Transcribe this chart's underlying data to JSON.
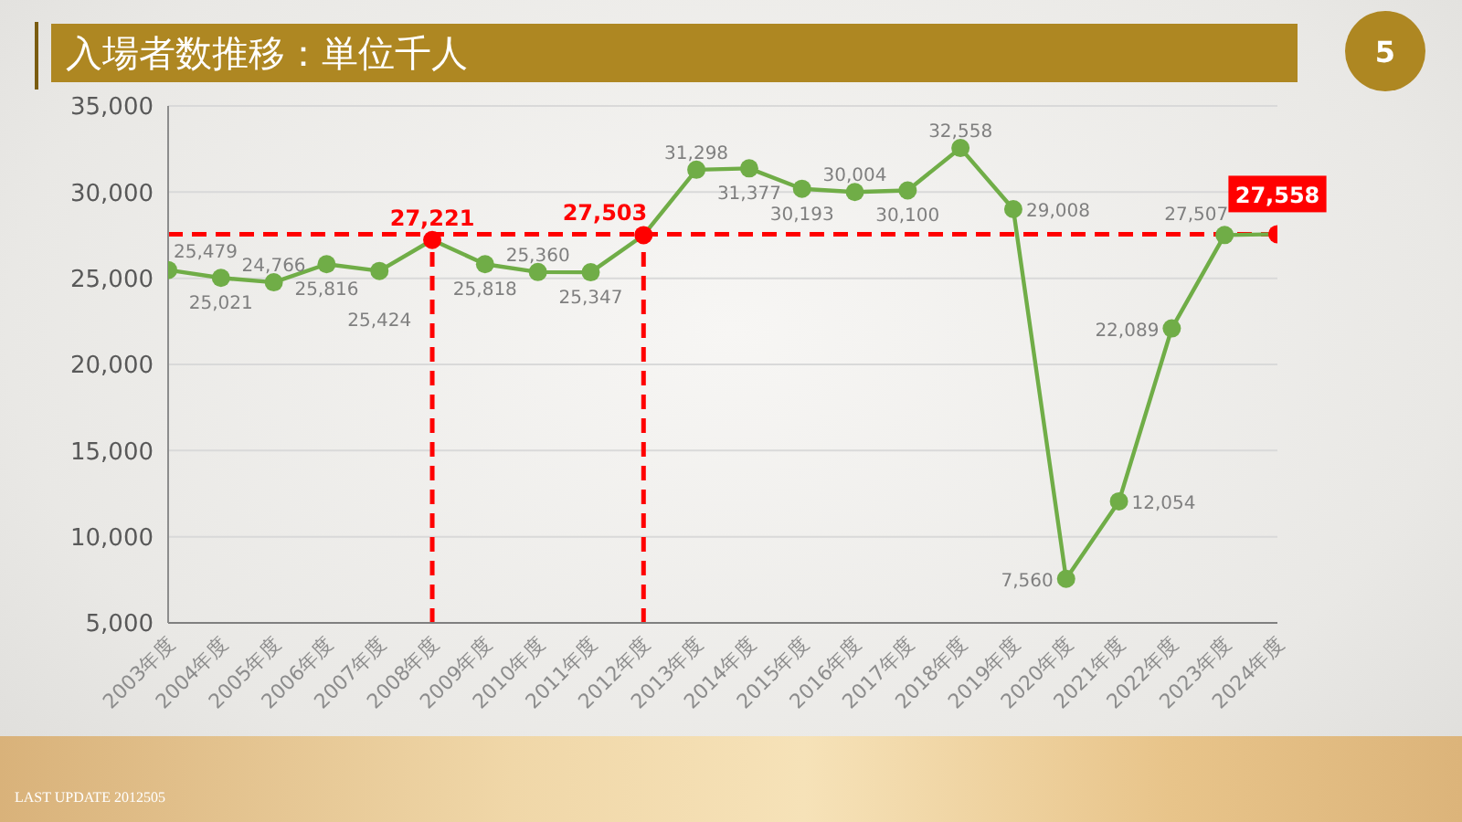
{
  "chart_data": {
    "type": "line",
    "title": "入場者数推移：単位千人",
    "categories": [
      "2003年度",
      "2004年度",
      "2005年度",
      "2006年度",
      "2007年度",
      "2008年度",
      "2009年度",
      "2010年度",
      "2011年度",
      "2012年度",
      "2013年度",
      "2014年度",
      "2015年度",
      "2016年度",
      "2017年度",
      "2018年度",
      "2019年度",
      "2020年度",
      "2021年度",
      "2022年度",
      "2023年度",
      "2024年度"
    ],
    "values": [
      25479,
      25021,
      24766,
      25816,
      25424,
      27221,
      25818,
      25360,
      25347,
      27503,
      31298,
      31377,
      30193,
      30004,
      30100,
      32558,
      29008,
      7560,
      12054,
      22089,
      27507,
      27558
    ],
    "value_labels": [
      "25,479",
      "25,021",
      "24,766",
      "25,816",
      "25,424",
      "27,221",
      "25,818",
      "25,360",
      "25,347",
      "27,503",
      "31,298",
      "31,377",
      "30,193",
      "30,004",
      "30,100",
      "32,558",
      "29,008",
      "7,560",
      "12,054",
      "22,089",
      "27,507",
      "27,558"
    ],
    "color": "#70ad47",
    "colors": [
      "#70ad47",
      "#70ad47",
      "#70ad47",
      "#70ad47",
      "#70ad47",
      "#ff0000",
      "#70ad47",
      "#70ad47",
      "#70ad47",
      "#ff0000",
      "#70ad47",
      "#70ad47",
      "#70ad47",
      "#70ad47",
      "#70ad47",
      "#70ad47",
      "#70ad47",
      "#70ad47",
      "#70ad47",
      "#70ad47",
      "#70ad47",
      "#ff0000"
    ],
    "ylim": [
      5000,
      35000
    ],
    "yticks": [
      {
        "value": 5000,
        "label": "5,000"
      },
      {
        "value": 10000,
        "label": "10,000"
      },
      {
        "value": 15000,
        "label": "15,000"
      },
      {
        "value": 20000,
        "label": "20,000"
      },
      {
        "value": 25000,
        "label": "25,000"
      },
      {
        "value": 30000,
        "label": "30,000"
      },
      {
        "value": 35000,
        "label": "35,000"
      }
    ],
    "grid": "y",
    "marker": "circle",
    "line_style": "solid",
    "ref_lines": [
      {
        "axis": "y",
        "value": 27558,
        "color": "#ff0000",
        "line_style": "dashed"
      },
      {
        "axis": "x",
        "value": "2008年度",
        "color": "#ff0000",
        "line_style": "dashed"
      },
      {
        "axis": "x",
        "value": "2012年度",
        "color": "#ff0000",
        "line_style": "dashed"
      }
    ],
    "annotations": [
      "5",
      "LAST UPDATE 2012505"
    ]
  }
}
